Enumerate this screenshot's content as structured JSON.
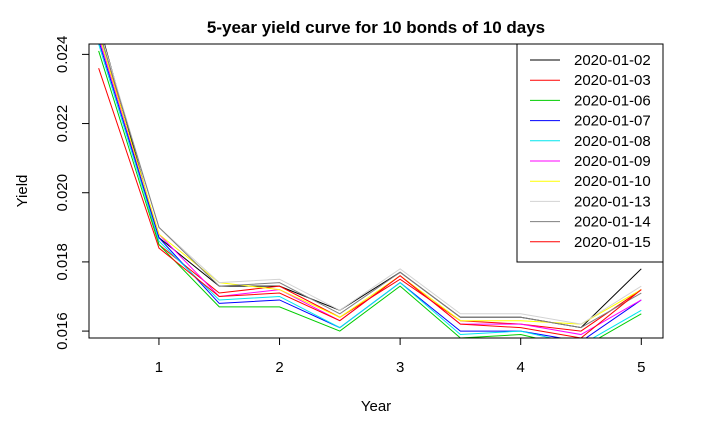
{
  "chart_data": {
    "type": "line",
    "title": "5-year yield curve for 10 bonds of 10 days",
    "xlabel": "Year",
    "ylabel": "Yield",
    "x": [
      0.5,
      1,
      1.5,
      2,
      2.5,
      3,
      3.5,
      4,
      4.5,
      5
    ],
    "xticks": [
      1,
      2,
      3,
      4,
      5
    ],
    "yticks": [
      0.016,
      0.018,
      0.02,
      0.022,
      0.024
    ],
    "ytick_labels": [
      "0.016",
      "0.018",
      "0.020",
      "0.022",
      "0.024"
    ],
    "xlim": [
      0.42,
      5.18
    ],
    "ylim": [
      0.0158,
      0.0243
    ],
    "legend_position": "top-right",
    "series": [
      {
        "name": "2020-01-02",
        "color": "#000000",
        "values": [
          0.0249,
          0.0187,
          0.0173,
          0.0173,
          0.0166,
          0.0177,
          0.0164,
          0.0164,
          0.0161,
          0.0178
        ]
      },
      {
        "name": "2020-01-03",
        "color": "#ff0000",
        "values": [
          0.0248,
          0.0185,
          0.0171,
          0.0173,
          0.0164,
          0.0175,
          0.0163,
          0.0162,
          0.016,
          0.0172
        ]
      },
      {
        "name": "2020-01-06",
        "color": "#00cd00",
        "values": [
          0.0241,
          0.0185,
          0.0167,
          0.0167,
          0.016,
          0.0173,
          0.0158,
          0.0159,
          0.0155,
          0.0165
        ]
      },
      {
        "name": "2020-01-07",
        "color": "#0000ff",
        "values": [
          0.0244,
          0.0187,
          0.0168,
          0.0169,
          0.0161,
          0.0174,
          0.016,
          0.016,
          0.0157,
          0.0169
        ]
      },
      {
        "name": "2020-01-08",
        "color": "#00e5ee",
        "values": [
          0.0243,
          0.0186,
          0.0169,
          0.017,
          0.0161,
          0.0174,
          0.0159,
          0.016,
          0.0156,
          0.0166
        ]
      },
      {
        "name": "2020-01-09",
        "color": "#ff00ff",
        "values": [
          0.0245,
          0.0188,
          0.017,
          0.0172,
          0.0163,
          0.0176,
          0.0162,
          0.0162,
          0.0159,
          0.0169
        ]
      },
      {
        "name": "2020-01-10",
        "color": "#ffff00",
        "values": [
          0.0246,
          0.0188,
          0.0174,
          0.0172,
          0.0164,
          0.0176,
          0.0163,
          0.0163,
          0.0162,
          0.0172
        ]
      },
      {
        "name": "2020-01-13",
        "color": "#d3d3d3",
        "values": [
          0.0248,
          0.019,
          0.0174,
          0.0175,
          0.0166,
          0.0178,
          0.0165,
          0.0165,
          0.0162,
          0.0173
        ]
      },
      {
        "name": "2020-01-14",
        "color": "#7f7f7f",
        "values": [
          0.0247,
          0.019,
          0.0173,
          0.0174,
          0.0165,
          0.0177,
          0.0164,
          0.0164,
          0.0161,
          0.0171
        ]
      },
      {
        "name": "2020-01-15",
        "color": "#ff0000",
        "values": [
          0.0236,
          0.0184,
          0.017,
          0.0171,
          0.0163,
          0.0176,
          0.0162,
          0.0161,
          0.0158,
          0.0172
        ]
      }
    ]
  }
}
